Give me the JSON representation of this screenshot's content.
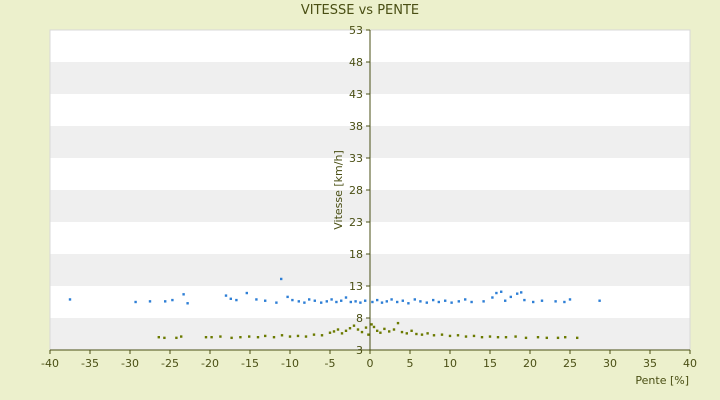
{
  "chart_data": {
    "type": "scatter",
    "title": "VITESSE vs PENTE",
    "xlabel": "Pente [%]",
    "ylabel": "Vitesse [km/h]",
    "xlim": [
      -40,
      40
    ],
    "ylim": [
      3,
      53
    ],
    "x_ticks": [
      -40,
      -35,
      -30,
      -25,
      -20,
      -15,
      -10,
      -5,
      0,
      5,
      10,
      15,
      20,
      25,
      30,
      35,
      40
    ],
    "y_ticks": [
      3,
      8,
      13,
      18,
      23,
      28,
      33,
      38,
      43,
      48,
      53
    ],
    "grid": "horizontal bands",
    "legend": "none",
    "colors": {
      "background": "#ecf0cc",
      "band_light": "#ffffff",
      "band_dark": "#efefef",
      "axis": "#4a4f14",
      "series_blue": "#2e7fd6",
      "series_olive": "#6b7a00"
    },
    "series": [
      {
        "color": "#2e7fd6",
        "points": [
          [
            -37.5,
            10.9
          ],
          [
            -29.3,
            10.5
          ],
          [
            -27.5,
            10.6
          ],
          [
            -25.6,
            10.6
          ],
          [
            -24.7,
            10.8
          ],
          [
            -23.3,
            11.7
          ],
          [
            -22.8,
            10.3
          ],
          [
            -18.0,
            11.5
          ],
          [
            -17.4,
            11.0
          ],
          [
            -16.7,
            10.8
          ],
          [
            -15.4,
            11.9
          ],
          [
            -14.2,
            10.9
          ],
          [
            -13.1,
            10.7
          ],
          [
            -11.7,
            10.4
          ],
          [
            -11.1,
            14.1
          ],
          [
            -10.3,
            11.3
          ],
          [
            -9.7,
            10.8
          ],
          [
            -8.9,
            10.6
          ],
          [
            -8.2,
            10.4
          ],
          [
            -7.6,
            10.9
          ],
          [
            -6.9,
            10.7
          ],
          [
            -6.1,
            10.4
          ],
          [
            -5.4,
            10.6
          ],
          [
            -4.8,
            10.9
          ],
          [
            -4.2,
            10.5
          ],
          [
            -3.6,
            10.7
          ],
          [
            -3.0,
            11.2
          ],
          [
            -2.4,
            10.5
          ],
          [
            -1.8,
            10.6
          ],
          [
            -1.2,
            10.4
          ],
          [
            -0.6,
            10.7
          ],
          [
            0.3,
            10.5
          ],
          [
            0.9,
            10.8
          ],
          [
            1.5,
            10.4
          ],
          [
            2.1,
            10.6
          ],
          [
            2.7,
            10.9
          ],
          [
            3.4,
            10.5
          ],
          [
            4.1,
            10.7
          ],
          [
            4.8,
            10.3
          ],
          [
            5.6,
            10.9
          ],
          [
            6.3,
            10.6
          ],
          [
            7.1,
            10.4
          ],
          [
            7.9,
            10.8
          ],
          [
            8.6,
            10.5
          ],
          [
            9.4,
            10.7
          ],
          [
            10.2,
            10.4
          ],
          [
            11.1,
            10.6
          ],
          [
            11.9,
            10.9
          ],
          [
            12.7,
            10.5
          ],
          [
            14.2,
            10.6
          ],
          [
            15.3,
            11.2
          ],
          [
            15.8,
            11.9
          ],
          [
            16.4,
            12.1
          ],
          [
            16.9,
            10.7
          ],
          [
            17.6,
            11.3
          ],
          [
            18.4,
            11.8
          ],
          [
            18.9,
            12.0
          ],
          [
            19.3,
            10.8
          ],
          [
            20.4,
            10.5
          ],
          [
            21.5,
            10.7
          ],
          [
            23.2,
            10.6
          ],
          [
            24.3,
            10.5
          ],
          [
            25.0,
            10.9
          ],
          [
            28.7,
            10.7
          ]
        ]
      },
      {
        "color": "#6b7a00",
        "points": [
          [
            -26.4,
            5.0
          ],
          [
            -25.7,
            4.9
          ],
          [
            -24.2,
            4.9
          ],
          [
            -23.6,
            5.1
          ],
          [
            -20.5,
            5.0
          ],
          [
            -19.8,
            5.0
          ],
          [
            -18.7,
            5.1
          ],
          [
            -17.3,
            4.9
          ],
          [
            -16.2,
            5.0
          ],
          [
            -15.1,
            5.1
          ],
          [
            -14.0,
            5.0
          ],
          [
            -13.1,
            5.2
          ],
          [
            -12.0,
            5.0
          ],
          [
            -11.0,
            5.3
          ],
          [
            -10.0,
            5.1
          ],
          [
            -9.0,
            5.2
          ],
          [
            -8.0,
            5.1
          ],
          [
            -7.0,
            5.4
          ],
          [
            -6.0,
            5.3
          ],
          [
            -5.0,
            5.7
          ],
          [
            -4.5,
            5.9
          ],
          [
            -4.0,
            6.2
          ],
          [
            -3.5,
            5.6
          ],
          [
            -3.0,
            6.0
          ],
          [
            -2.5,
            6.4
          ],
          [
            -2.0,
            6.8
          ],
          [
            -1.5,
            6.2
          ],
          [
            -1.0,
            5.8
          ],
          [
            -0.5,
            6.5
          ],
          [
            -0.2,
            5.4
          ],
          [
            0.2,
            7.0
          ],
          [
            0.5,
            6.6
          ],
          [
            0.9,
            6.0
          ],
          [
            1.3,
            5.7
          ],
          [
            1.8,
            6.3
          ],
          [
            2.4,
            5.9
          ],
          [
            3.0,
            6.2
          ],
          [
            3.5,
            7.2
          ],
          [
            4.0,
            5.8
          ],
          [
            4.6,
            5.6
          ],
          [
            5.2,
            6.0
          ],
          [
            5.8,
            5.5
          ],
          [
            6.5,
            5.4
          ],
          [
            7.2,
            5.6
          ],
          [
            8.0,
            5.3
          ],
          [
            9.0,
            5.4
          ],
          [
            10.0,
            5.2
          ],
          [
            11.0,
            5.3
          ],
          [
            12.0,
            5.1
          ],
          [
            13.0,
            5.2
          ],
          [
            14.0,
            5.0
          ],
          [
            15.0,
            5.1
          ],
          [
            16.0,
            5.0
          ],
          [
            17.0,
            5.0
          ],
          [
            18.2,
            5.1
          ],
          [
            19.5,
            4.9
          ],
          [
            21.0,
            5.0
          ],
          [
            22.1,
            4.9
          ],
          [
            23.5,
            4.9
          ],
          [
            24.4,
            5.0
          ],
          [
            25.9,
            4.9
          ]
        ]
      }
    ]
  }
}
